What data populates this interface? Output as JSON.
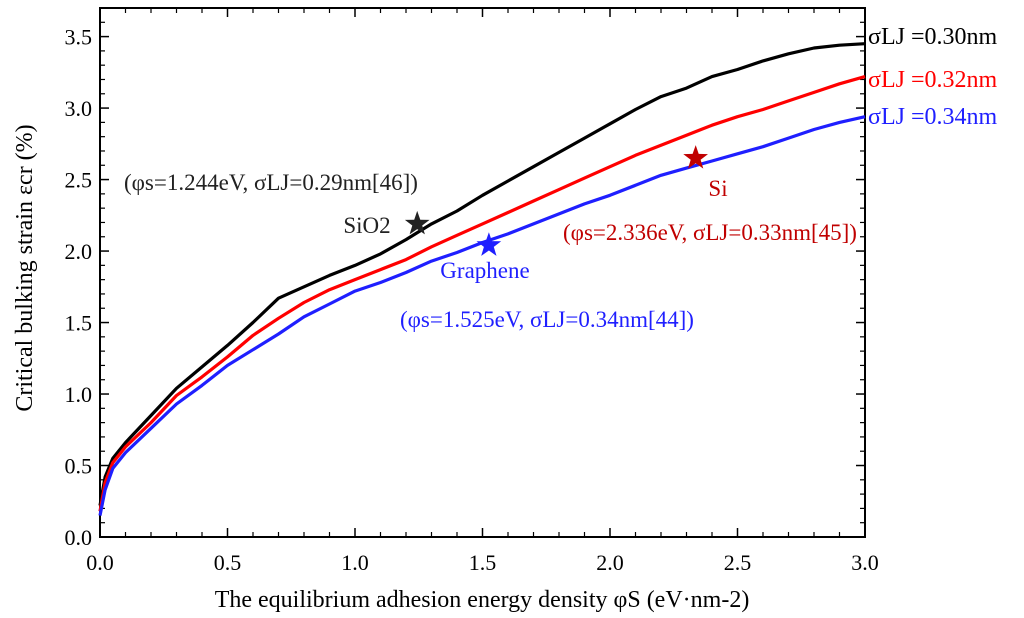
{
  "chart_data": {
    "type": "line",
    "xlabel": "The equilibrium adhesion energy density φS (eV·nm-2)",
    "ylabel": "Critical bulking strain εcr (%)",
    "xlim": [
      0,
      3.0
    ],
    "ylim": [
      0,
      3.7
    ],
    "xticks": [
      "0.0",
      "0.5",
      "1.0",
      "1.5",
      "2.0",
      "2.5",
      "3.0"
    ],
    "yticks": [
      "0.0",
      "0.5",
      "1.0",
      "1.5",
      "2.0",
      "2.5",
      "3.0",
      "3.5"
    ],
    "x": [
      0,
      0.02,
      0.05,
      0.1,
      0.2,
      0.3,
      0.4,
      0.5,
      0.6,
      0.7,
      0.8,
      0.9,
      1.0,
      1.1,
      1.2,
      1.3,
      1.4,
      1.5,
      1.6,
      1.7,
      1.8,
      1.9,
      2.0,
      2.1,
      2.2,
      2.3,
      2.4,
      2.5,
      2.6,
      2.7,
      2.8,
      2.9,
      3.0
    ],
    "series": [
      {
        "name": "σLJ =0.30nm",
        "color": "#000000",
        "values": [
          0.22,
          0.42,
          0.55,
          0.66,
          0.85,
          1.04,
          1.19,
          1.34,
          1.5,
          1.67,
          1.75,
          1.83,
          1.9,
          1.98,
          2.08,
          2.19,
          2.28,
          2.39,
          2.49,
          2.59,
          2.69,
          2.79,
          2.89,
          2.99,
          3.08,
          3.14,
          3.22,
          3.27,
          3.33,
          3.38,
          3.42,
          3.44,
          3.45
        ]
      },
      {
        "name": "σLJ =0.32nm",
        "color": "#ff0000",
        "values": [
          0.18,
          0.38,
          0.52,
          0.63,
          0.8,
          0.99,
          1.12,
          1.26,
          1.41,
          1.53,
          1.64,
          1.73,
          1.8,
          1.87,
          1.94,
          2.03,
          2.11,
          2.19,
          2.27,
          2.35,
          2.43,
          2.51,
          2.59,
          2.67,
          2.74,
          2.81,
          2.88,
          2.94,
          2.99,
          3.05,
          3.11,
          3.17,
          3.22
        ]
      },
      {
        "name": "σLJ =0.34nm",
        "color": "#1f1fff",
        "values": [
          0.15,
          0.33,
          0.48,
          0.59,
          0.76,
          0.93,
          1.06,
          1.2,
          1.31,
          1.42,
          1.54,
          1.63,
          1.72,
          1.78,
          1.85,
          1.93,
          1.99,
          2.06,
          2.12,
          2.19,
          2.26,
          2.33,
          2.39,
          2.46,
          2.53,
          2.58,
          2.63,
          2.68,
          2.73,
          2.79,
          2.85,
          2.9,
          2.94
        ]
      }
    ],
    "markers": [
      {
        "label": "SiO2",
        "x": 1.244,
        "y": 2.19,
        "color": "#222222",
        "note": "(φs=1.244eV, σLJ=0.29nm[46])"
      },
      {
        "label": "Graphene",
        "x": 1.525,
        "y": 2.04,
        "color": "#1f1fff",
        "note": "(φs=1.525eV, σLJ=0.34nm[44])"
      },
      {
        "label": "Si",
        "x": 2.336,
        "y": 2.65,
        "color": "#c00000",
        "note": "(φs=2.336eV, σLJ=0.33nm[45])"
      }
    ],
    "grid": false,
    "legend": "right"
  }
}
